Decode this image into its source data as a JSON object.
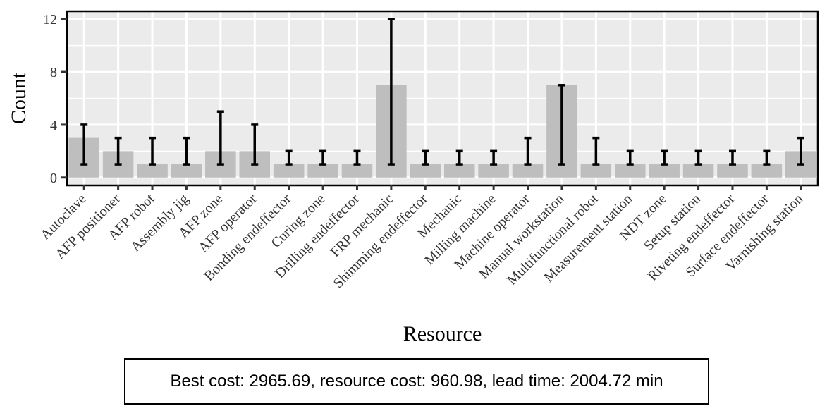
{
  "chart_data": {
    "type": "bar",
    "xlabel": "Resource",
    "ylabel": "Count",
    "ylim": [
      -0.6,
      12.6
    ],
    "yticks": [
      0,
      4,
      8,
      12
    ],
    "grid": true,
    "categories": [
      "Autoclave",
      "AFP positioner",
      "AFP robot",
      "Assembly jig",
      "AFP zone",
      "AFP operator",
      "Bonding endeffector",
      "Curing zone",
      "Drilling endeffector",
      "FRP mechanic",
      "Shimming endeffector",
      "Mechanic",
      "Milling machine",
      "Machine operator",
      "Manual workstation",
      "Multifunctional robot",
      "Measurement station",
      "NDT zone",
      "Setup station",
      "Riveting endeffector",
      "Surface endeffector",
      "Varnishing station"
    ],
    "values": [
      3,
      2,
      1,
      1,
      2,
      2,
      1,
      1,
      1,
      7,
      1,
      1,
      1,
      1,
      7,
      1,
      1,
      1,
      1,
      1,
      1,
      2
    ],
    "error_min": [
      1,
      1,
      1,
      1,
      1,
      1,
      1,
      1,
      1,
      1,
      1,
      1,
      1,
      1,
      1,
      1,
      1,
      1,
      1,
      1,
      1,
      1
    ],
    "error_max": [
      4,
      3,
      3,
      3,
      5,
      4,
      2,
      2,
      2,
      12,
      2,
      2,
      2,
      3,
      7,
      3,
      2,
      2,
      2,
      2,
      2,
      3
    ],
    "colors": {
      "bar": "#bebebe",
      "panel": "#ebebeb",
      "grid": "#ffffff",
      "error": "#000000"
    }
  },
  "summary": {
    "text": "Best cost: 2965.69, resource cost: 960.98, lead time: 2004.72 min"
  }
}
